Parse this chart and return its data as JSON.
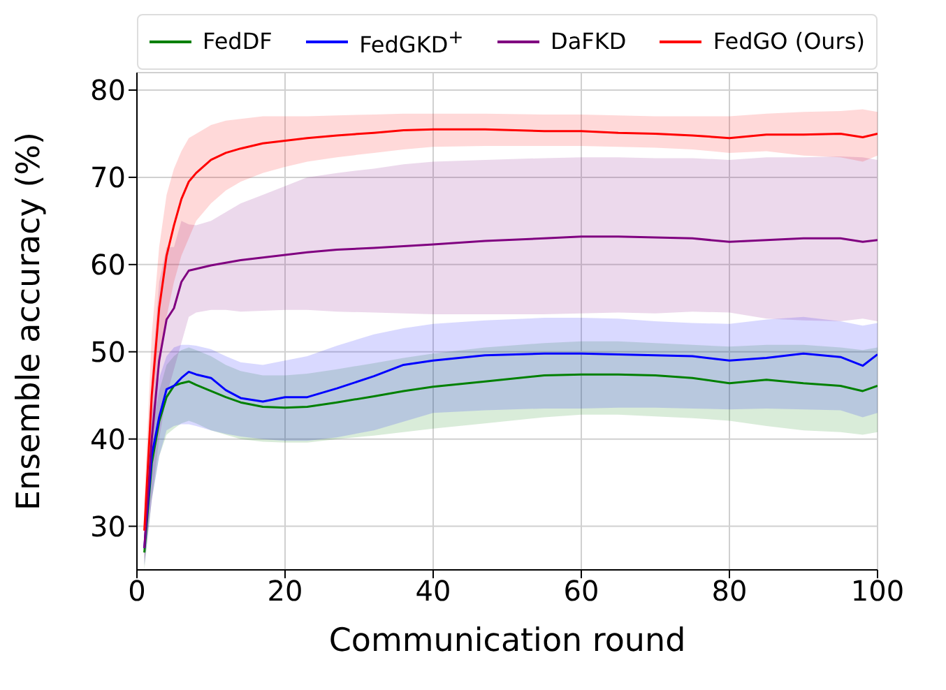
{
  "chart_data": {
    "type": "line",
    "xlabel": "Communication round",
    "ylabel": "Ensemble accuracy (%)",
    "x": [
      1,
      2,
      3,
      4,
      5,
      6,
      7,
      8,
      10,
      12,
      14,
      17,
      20,
      23,
      27,
      32,
      36,
      40,
      47,
      55,
      60,
      65,
      70,
      75,
      80,
      85,
      90,
      95,
      98,
      100
    ],
    "xlim": [
      0,
      100
    ],
    "xticks": [
      0,
      20,
      40,
      60,
      80,
      100
    ],
    "ylim": [
      25,
      82
    ],
    "yticks": [
      30,
      40,
      50,
      60,
      70,
      80
    ],
    "grid": true,
    "legend": "top",
    "series": [
      {
        "name": "FedDF",
        "color": "#008000",
        "values": [
          27,
          37.2,
          42,
          44.8,
          46.1,
          46.4,
          46.6,
          46.2,
          45.5,
          44.8,
          44.2,
          43.7,
          43.6,
          43.7,
          44.2,
          44.9,
          45.5,
          46,
          46.6,
          47.3,
          47.4,
          47.4,
          47.3,
          47.0,
          46.4,
          46.8,
          46.4,
          46.1,
          45.5,
          46.1
        ],
        "lower": [
          25,
          33,
          38,
          40.5,
          41.2,
          41.8,
          42.1,
          41.8,
          41,
          40.5,
          40,
          39.7,
          39.6,
          39.6,
          40,
          40.4,
          40.8,
          41.2,
          41.8,
          42.5,
          42.8,
          42.8,
          42.6,
          42.4,
          42.1,
          41.5,
          41,
          40.8,
          40.5,
          40.8
        ],
        "upper": [
          29,
          41,
          45.5,
          48.5,
          49.5,
          50.2,
          50.5,
          50.2,
          49.5,
          48.5,
          47.8,
          47.3,
          47.3,
          47.5,
          48,
          48.7,
          49.3,
          49.8,
          50.5,
          51,
          51.2,
          51.2,
          51,
          50.8,
          50.6,
          50.8,
          50.8,
          50.5,
          50.2,
          50.5
        ]
      },
      {
        "name": "FedGKD$^{+}$",
        "color": "#0000ff",
        "values": [
          27.5,
          38.1,
          42.5,
          45.7,
          46.1,
          47,
          47.7,
          47.4,
          47,
          45.6,
          44.7,
          44.3,
          44.8,
          44.8,
          45.8,
          47.2,
          48.5,
          49.0,
          49.6,
          49.8,
          49.8,
          49.7,
          49.6,
          49.5,
          49.0,
          49.3,
          49.8,
          49.4,
          48.4,
          49.7
        ],
        "lower": [
          25.5,
          33,
          38,
          41,
          41.5,
          41.7,
          41.7,
          41.5,
          41,
          40.6,
          40.3,
          40,
          39.8,
          39.8,
          40.2,
          41,
          42,
          43,
          43.3,
          43.5,
          43.5,
          43.6,
          43.6,
          43.5,
          43.4,
          43.5,
          43.4,
          43.3,
          42.5,
          43
        ],
        "upper": [
          29.5,
          43,
          47,
          49.5,
          50.5,
          50.8,
          50.8,
          50.7,
          50.3,
          49.5,
          48.8,
          48.5,
          49,
          49.5,
          50.7,
          52,
          52.7,
          53.2,
          53.6,
          53.9,
          53.9,
          53.8,
          53.5,
          53.3,
          53.2,
          53.7,
          54,
          53.5,
          53,
          53.3
        ]
      },
      {
        "name": "DaFKD",
        "color": "#800080",
        "values": [
          27.5,
          40,
          49,
          53.7,
          55,
          58,
          59.3,
          59.5,
          59.9,
          60.2,
          60.5,
          60.8,
          61.1,
          61.4,
          61.7,
          61.9,
          62.1,
          62.3,
          62.7,
          63.0,
          63.2,
          63.2,
          63.1,
          63.0,
          62.6,
          62.8,
          63.0,
          63.0,
          62.6,
          62.8
        ],
        "lower": [
          25.5,
          33,
          40,
          45,
          48,
          51,
          54,
          54.5,
          54.8,
          54.8,
          54.6,
          54.7,
          54.8,
          54.8,
          54.6,
          54.5,
          54.4,
          54.3,
          54.3,
          54.3,
          54.4,
          54.5,
          54.4,
          54.6,
          54.5,
          53.8,
          53.6,
          53.5,
          53.8,
          53.5
        ],
        "upper": [
          29.5,
          47,
          58,
          62,
          62,
          65,
          64.6,
          64.5,
          65,
          66,
          67,
          68,
          69,
          70,
          70.5,
          71,
          71.5,
          71.8,
          72,
          72.2,
          72.3,
          72.3,
          72.2,
          72.2,
          72.0,
          72.3,
          72.3,
          72.4,
          72.3,
          72.0
        ]
      },
      {
        "name": "FedGO (Ours)",
        "color": "#ff0000",
        "values": [
          29.5,
          45,
          55,
          61,
          64.5,
          67.5,
          69.5,
          70.5,
          72,
          72.8,
          73.3,
          73.9,
          74.2,
          74.5,
          74.8,
          75.1,
          75.4,
          75.5,
          75.5,
          75.3,
          75.3,
          75.1,
          75.0,
          74.8,
          74.5,
          74.9,
          74.9,
          75.0,
          74.6,
          75.0
        ],
        "lower": [
          26,
          38,
          48,
          54,
          58,
          61,
          63,
          65,
          67,
          68.5,
          69.5,
          70.5,
          71.2,
          71.8,
          72.3,
          72.8,
          73.2,
          73.5,
          73.6,
          73.6,
          73.6,
          73.5,
          73.4,
          73.2,
          72.8,
          73.0,
          72.5,
          72.3,
          71.8,
          72.5
        ],
        "upper": [
          33,
          52,
          62,
          68,
          71,
          73,
          74.5,
          75,
          76,
          76.5,
          76.7,
          77,
          77,
          77,
          77.1,
          77.2,
          77.3,
          77.3,
          77.3,
          77.2,
          77.2,
          77.1,
          77,
          77,
          77,
          77.3,
          77.5,
          77.6,
          77.8,
          77.5
        ]
      }
    ]
  }
}
